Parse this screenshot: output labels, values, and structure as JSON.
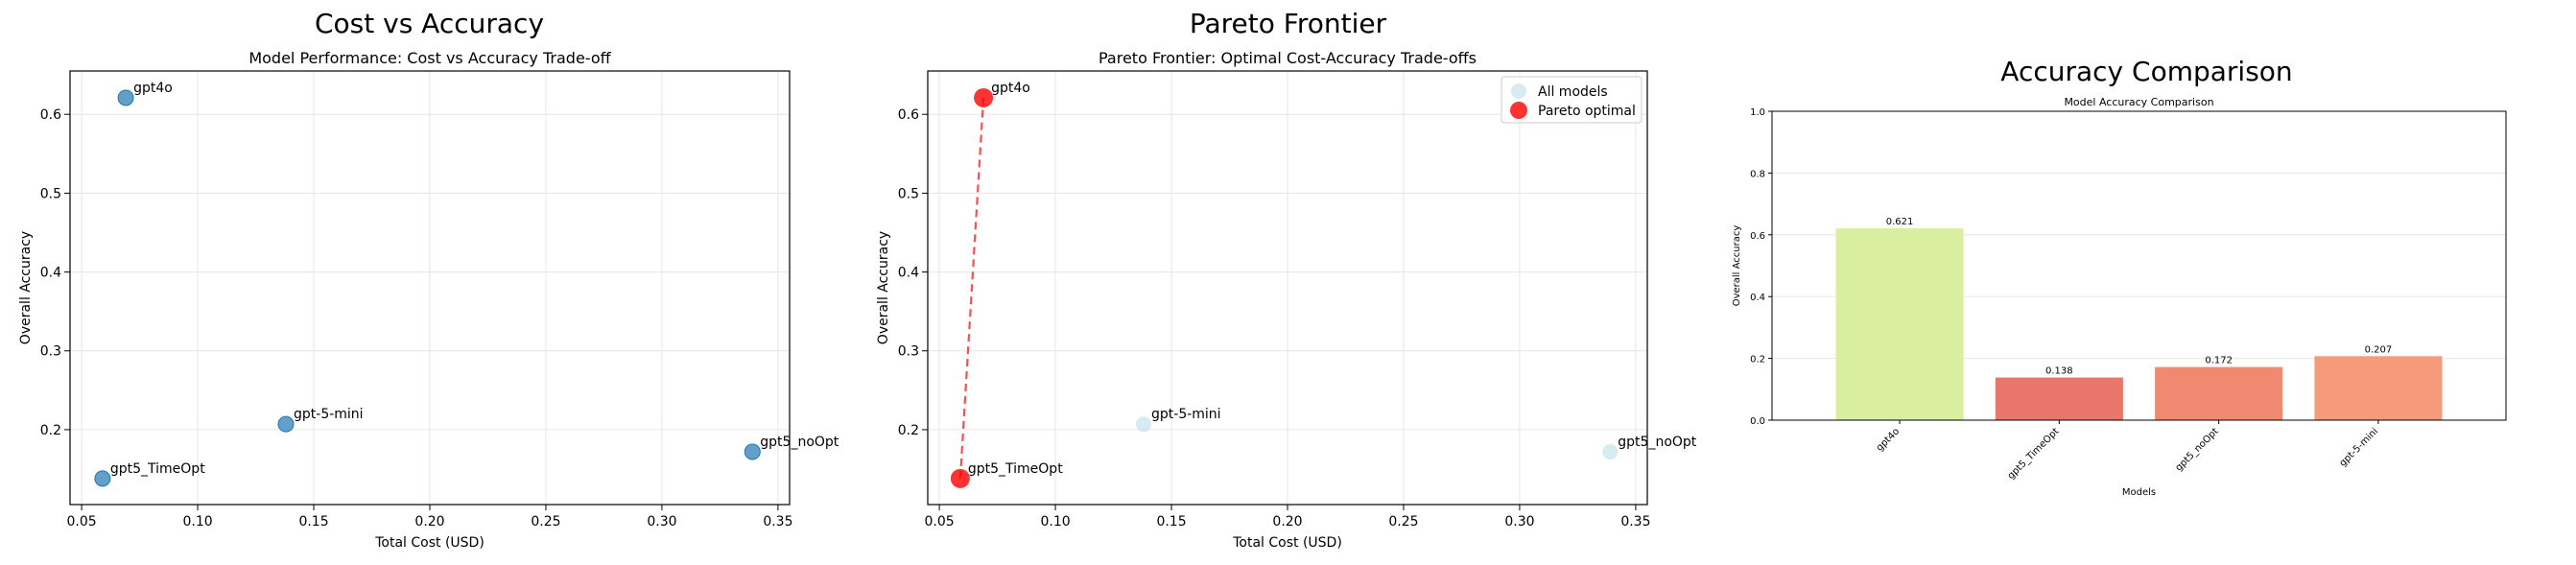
{
  "panels": {
    "p1": {
      "suptitle": "Cost vs Accuracy"
    },
    "p2": {
      "suptitle": "Pareto Frontier"
    },
    "p3": {
      "suptitle": "Accuracy Comparison"
    }
  },
  "colors": {
    "scatter": "#1f77b4",
    "pareto": "#ff0000",
    "all_models": "#add8e6",
    "bars": [
      "#d9ef9f",
      "#e8766a",
      "#ef8a71",
      "#f59a7b"
    ],
    "grid": "#e6e6e6"
  },
  "chart_data": [
    {
      "type": "scatter",
      "title": "Model Performance: Cost vs Accuracy Trade-off",
      "xlabel": "Total Cost (USD)",
      "ylabel": "Overall Accuracy",
      "xlim": [
        0.045,
        0.355
      ],
      "ylim": [
        0.105,
        0.655
      ],
      "xticks": [
        0.05,
        0.1,
        0.15,
        0.2,
        0.25,
        0.3,
        0.35
      ],
      "xtick_labels": [
        "0.05",
        "0.10",
        "0.15",
        "0.20",
        "0.25",
        "0.30",
        "0.35"
      ],
      "yticks": [
        0.2,
        0.3,
        0.4,
        0.5,
        0.6
      ],
      "ytick_labels": [
        "0.2",
        "0.3",
        "0.4",
        "0.5",
        "0.6"
      ],
      "grid": true,
      "points": [
        {
          "label": "gpt4o",
          "x": 0.069,
          "y": 0.621
        },
        {
          "label": "gpt-5-mini",
          "x": 0.138,
          "y": 0.207
        },
        {
          "label": "gpt5_TimeOpt",
          "x": 0.059,
          "y": 0.138
        },
        {
          "label": "gpt5_noOpt",
          "x": 0.339,
          "y": 0.172
        }
      ]
    },
    {
      "type": "scatter",
      "title": "Pareto Frontier: Optimal Cost-Accuracy Trade-offs",
      "xlabel": "Total Cost (USD)",
      "ylabel": "Overall Accuracy",
      "xlim": [
        0.045,
        0.355
      ],
      "ylim": [
        0.105,
        0.655
      ],
      "xticks": [
        0.05,
        0.1,
        0.15,
        0.2,
        0.25,
        0.3,
        0.35
      ],
      "xtick_labels": [
        "0.05",
        "0.10",
        "0.15",
        "0.20",
        "0.25",
        "0.30",
        "0.35"
      ],
      "yticks": [
        0.2,
        0.3,
        0.4,
        0.5,
        0.6
      ],
      "ytick_labels": [
        "0.2",
        "0.3",
        "0.4",
        "0.5",
        "0.6"
      ],
      "grid": true,
      "legend_position": "top-right",
      "series": [
        {
          "name": "All models",
          "points": [
            {
              "label": "gpt-5-mini",
              "x": 0.138,
              "y": 0.207
            },
            {
              "label": "gpt5_noOpt",
              "x": 0.339,
              "y": 0.172
            }
          ]
        },
        {
          "name": "Pareto optimal",
          "points": [
            {
              "label": "gpt4o",
              "x": 0.069,
              "y": 0.621
            },
            {
              "label": "gpt5_TimeOpt",
              "x": 0.059,
              "y": 0.138
            }
          ]
        }
      ],
      "frontier_line": [
        {
          "x": 0.059,
          "y": 0.138
        },
        {
          "x": 0.069,
          "y": 0.621
        }
      ]
    },
    {
      "type": "bar",
      "title": "Model Accuracy Comparison",
      "xlabel": "Models",
      "ylabel": "Overall Accuracy",
      "ylim": [
        0,
        1.0
      ],
      "yticks": [
        0.0,
        0.2,
        0.4,
        0.6,
        0.8,
        1.0
      ],
      "ytick_labels": [
        "0.0",
        "0.2",
        "0.4",
        "0.6",
        "0.8",
        "1.0"
      ],
      "grid": true,
      "categories": [
        "gpt4o",
        "gpt5_TimeOpt",
        "gpt5_noOpt",
        "gpt-5-mini"
      ],
      "values": [
        0.621,
        0.138,
        0.172,
        0.207
      ],
      "value_labels": [
        "0.621",
        "0.138",
        "0.172",
        "0.207"
      ]
    }
  ]
}
